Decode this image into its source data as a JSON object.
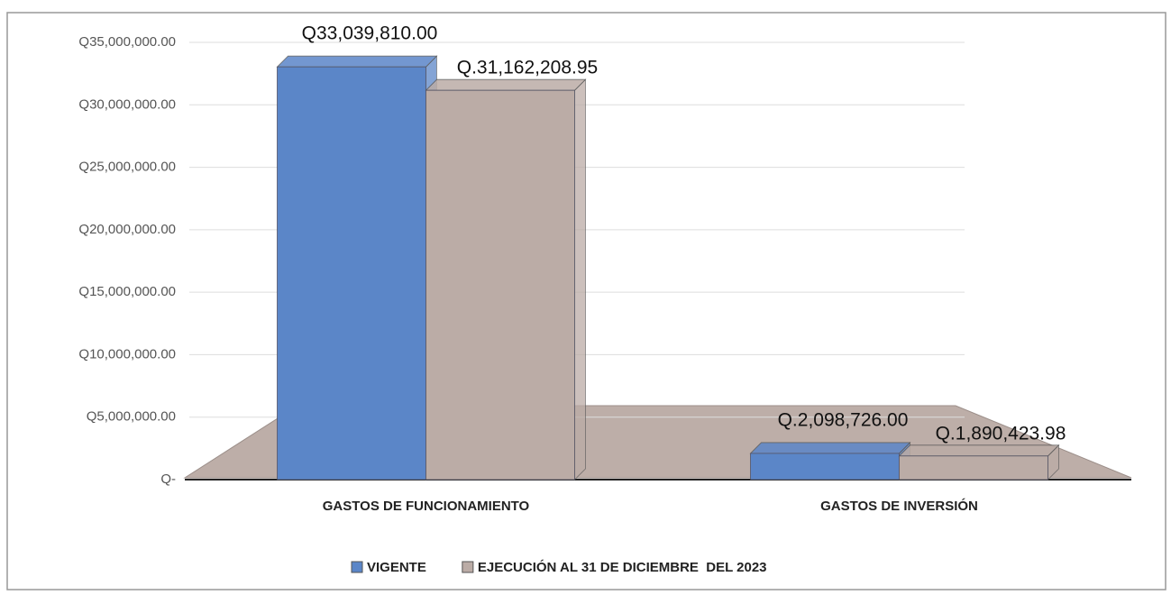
{
  "chart_data": {
    "type": "bar",
    "categories": [
      "GASTOS DE FUNCIONAMIENTO",
      "GASTOS DE INVERSIÓN"
    ],
    "series": [
      {
        "name": "VIGENTE",
        "color": "#5b86c8",
        "values": [
          33039810,
          2098726
        ],
        "value_labels": [
          "Q33,039,810.00",
          "Q.2,098,726.00"
        ]
      },
      {
        "name": "EJECUCIÓN AL 31 DE DICIEMBRE  DEL 2023",
        "color": "#bbaca6",
        "values": [
          31162208.95,
          1890423.98
        ],
        "value_labels": [
          "Q.31,162,208.95",
          "Q.1,890,423.98"
        ]
      }
    ],
    "ylim": [
      0,
      35000000
    ],
    "yticks": [
      {
        "value": 0,
        "label": "Q-"
      },
      {
        "value": 5000000,
        "label": "Q5,000,000.00"
      },
      {
        "value": 10000000,
        "label": "Q10,000,000.00"
      },
      {
        "value": 15000000,
        "label": "Q15,000,000.00"
      },
      {
        "value": 20000000,
        "label": "Q20,000,000.00"
      },
      {
        "value": 25000000,
        "label": "Q25,000,000.00"
      },
      {
        "value": 30000000,
        "label": "Q30,000,000.00"
      },
      {
        "value": 35000000,
        "label": "Q35,000,000.00"
      }
    ],
    "grid": true,
    "legend": "bottom"
  }
}
